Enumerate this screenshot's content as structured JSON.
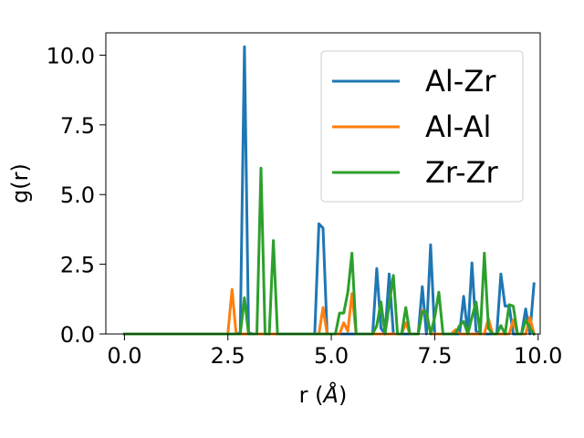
{
  "chart_data": {
    "type": "line",
    "title": "",
    "xlabel": "r (",
    "xlabel_symbol": "Å",
    "xlabel_close": ")",
    "ylabel": "g(r)",
    "xlim": [
      -0.45,
      10.05
    ],
    "ylim": [
      0,
      10.8
    ],
    "xticks": [
      0.0,
      2.5,
      5.0,
      7.5,
      10.0
    ],
    "xtick_labels": [
      "0.0",
      "2.5",
      "5.0",
      "7.5",
      "10.0"
    ],
    "yticks": [
      0.0,
      2.5,
      5.0,
      7.5,
      10.0
    ],
    "ytick_labels": [
      "0.0",
      "2.5",
      "5.0",
      "7.5",
      "10.0"
    ],
    "grid": false,
    "legend_position": "top-right",
    "series": [
      {
        "name": "Al-Zr",
        "color": "#1f77b4",
        "points": [
          [
            0,
            0
          ],
          [
            2.7,
            0
          ],
          [
            2.8,
            0.05
          ],
          [
            2.9,
            10.3
          ],
          [
            3.0,
            0.05
          ],
          [
            3.1,
            0
          ],
          [
            4.5,
            0
          ],
          [
            4.6,
            0
          ],
          [
            4.7,
            3.95
          ],
          [
            4.8,
            3.8
          ],
          [
            4.9,
            0
          ],
          [
            5.9,
            0
          ],
          [
            6.0,
            0
          ],
          [
            6.1,
            2.35
          ],
          [
            6.2,
            0.2
          ],
          [
            6.3,
            0
          ],
          [
            6.4,
            2.15
          ],
          [
            6.5,
            0
          ],
          [
            7.1,
            0
          ],
          [
            7.2,
            1.7
          ],
          [
            7.3,
            0
          ],
          [
            7.4,
            3.2
          ],
          [
            7.5,
            0
          ],
          [
            8.1,
            0
          ],
          [
            8.2,
            1.35
          ],
          [
            8.3,
            0
          ],
          [
            8.4,
            2.55
          ],
          [
            8.5,
            0.1
          ],
          [
            8.6,
            0
          ],
          [
            9.0,
            0
          ],
          [
            9.1,
            2.15
          ],
          [
            9.2,
            1.0
          ],
          [
            9.3,
            1.0
          ],
          [
            9.4,
            0
          ],
          [
            9.6,
            0
          ],
          [
            9.7,
            0.9
          ],
          [
            9.8,
            0
          ],
          [
            9.9,
            1.8
          ]
        ]
      },
      {
        "name": "Al-Al",
        "color": "#ff7f0e",
        "points": [
          [
            0,
            0
          ],
          [
            2.5,
            0
          ],
          [
            2.6,
            1.6
          ],
          [
            2.7,
            0
          ],
          [
            4.7,
            0
          ],
          [
            4.8,
            0.95
          ],
          [
            4.9,
            0
          ],
          [
            5.2,
            0
          ],
          [
            5.3,
            0.4
          ],
          [
            5.4,
            0.1
          ],
          [
            5.5,
            1.45
          ],
          [
            5.6,
            0
          ],
          [
            6.7,
            0
          ],
          [
            6.8,
            0.4
          ],
          [
            6.9,
            0
          ],
          [
            7.1,
            0
          ],
          [
            7.2,
            0.85
          ],
          [
            7.3,
            0.75
          ],
          [
            7.4,
            0
          ],
          [
            7.9,
            0
          ],
          [
            8.0,
            0.15
          ],
          [
            8.1,
            0
          ],
          [
            8.7,
            0
          ],
          [
            8.8,
            0.55
          ],
          [
            8.9,
            0
          ],
          [
            9.3,
            0
          ],
          [
            9.4,
            0.5
          ],
          [
            9.5,
            0
          ],
          [
            9.7,
            0
          ],
          [
            9.8,
            0.6
          ],
          [
            9.9,
            0
          ]
        ]
      },
      {
        "name": "Zr-Zr",
        "color": "#2ca02c",
        "points": [
          [
            0,
            0
          ],
          [
            2.7,
            0
          ],
          [
            2.8,
            0
          ],
          [
            2.9,
            1.3
          ],
          [
            3.0,
            0
          ],
          [
            3.2,
            0
          ],
          [
            3.3,
            5.95
          ],
          [
            3.4,
            0
          ],
          [
            3.5,
            0
          ],
          [
            3.6,
            3.35
          ],
          [
            3.7,
            0
          ],
          [
            5.1,
            0
          ],
          [
            5.2,
            0.75
          ],
          [
            5.3,
            0.75
          ],
          [
            5.4,
            1.5
          ],
          [
            5.5,
            2.9
          ],
          [
            5.6,
            0
          ],
          [
            6.0,
            0
          ],
          [
            6.1,
            0.3
          ],
          [
            6.2,
            1.15
          ],
          [
            6.3,
            0
          ],
          [
            6.4,
            1.05
          ],
          [
            6.5,
            2.1
          ],
          [
            6.6,
            0
          ],
          [
            6.7,
            0
          ],
          [
            6.8,
            0.95
          ],
          [
            6.9,
            0
          ],
          [
            7.1,
            0
          ],
          [
            7.2,
            0.8
          ],
          [
            7.3,
            0.8
          ],
          [
            7.4,
            0
          ],
          [
            7.5,
            0.6
          ],
          [
            7.6,
            1.5
          ],
          [
            7.7,
            0
          ],
          [
            8.0,
            0
          ],
          [
            8.1,
            0.3
          ],
          [
            8.2,
            0.45
          ],
          [
            8.3,
            0
          ],
          [
            8.4,
            0.6
          ],
          [
            8.5,
            1.15
          ],
          [
            8.6,
            0
          ],
          [
            8.7,
            2.9
          ],
          [
            8.8,
            0.2
          ],
          [
            8.9,
            0
          ],
          [
            9.0,
            0
          ],
          [
            9.1,
            0.3
          ],
          [
            9.2,
            0
          ],
          [
            9.3,
            1.05
          ],
          [
            9.4,
            1.0
          ],
          [
            9.5,
            0
          ],
          [
            9.6,
            0
          ],
          [
            9.7,
            0.5
          ],
          [
            9.8,
            0.2
          ],
          [
            9.9,
            0
          ]
        ]
      }
    ]
  }
}
